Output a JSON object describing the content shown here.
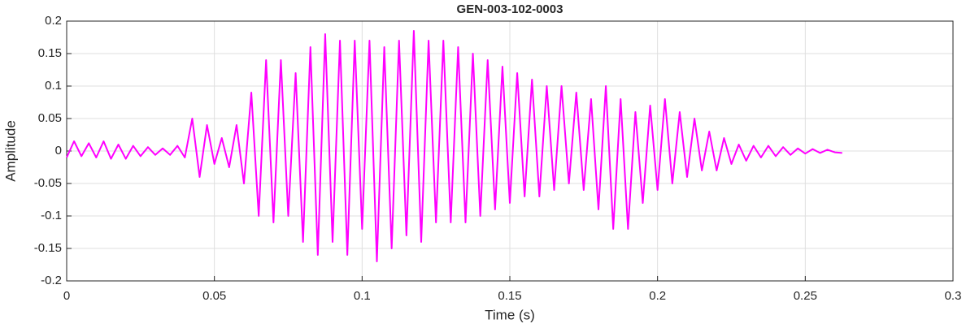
{
  "chart_data": {
    "type": "line",
    "title": "GEN-003-102-0003",
    "x_label": "Time (s)",
    "y_label": "Amplitude",
    "x": [
      0,
      0.0025,
      0.005,
      0.0075,
      0.01,
      0.0125,
      0.015,
      0.0175,
      0.02,
      0.0225,
      0.025,
      0.0275,
      0.03,
      0.0325,
      0.035,
      0.0375,
      0.04,
      0.0425,
      0.045,
      0.0475,
      0.05,
      0.0525,
      0.055,
      0.0575,
      0.06,
      0.0625,
      0.065,
      0.0675,
      0.07,
      0.0725,
      0.075,
      0.0775,
      0.08,
      0.0825,
      0.085,
      0.0875,
      0.09,
      0.0925,
      0.095,
      0.0975,
      0.1,
      0.1025,
      0.105,
      0.1075,
      0.11,
      0.1125,
      0.115,
      0.1175,
      0.12,
      0.1225,
      0.125,
      0.1275,
      0.13,
      0.1325,
      0.135,
      0.1375,
      0.14,
      0.1425,
      0.145,
      0.1475,
      0.15,
      0.1525,
      0.155,
      0.1575,
      0.16,
      0.1625,
      0.165,
      0.1675,
      0.17,
      0.1725,
      0.175,
      0.1775,
      0.18,
      0.1825,
      0.185,
      0.1875,
      0.19,
      0.1925,
      0.195,
      0.1975,
      0.2,
      0.2025,
      0.205,
      0.2075,
      0.21,
      0.2125,
      0.215,
      0.2175,
      0.22,
      0.2225,
      0.225,
      0.2275,
      0.23,
      0.2325,
      0.235,
      0.2375,
      0.24,
      0.2425,
      0.245,
      0.2475,
      0.25,
      0.2525,
      0.255,
      0.2575,
      0.26,
      0.2625
    ],
    "series": [
      {
        "color": "#ff00ff",
        "values": [
          -0.01,
          0.015,
          -0.008,
          0.012,
          -0.01,
          0.015,
          -0.012,
          0.01,
          -0.012,
          0.008,
          -0.008,
          0.006,
          -0.006,
          0.004,
          -0.006,
          0.008,
          -0.01,
          0.05,
          -0.04,
          0.04,
          -0.02,
          0.02,
          -0.025,
          0.04,
          -0.05,
          0.09,
          -0.1,
          0.14,
          -0.11,
          0.14,
          -0.1,
          0.12,
          -0.14,
          0.16,
          -0.16,
          0.18,
          -0.14,
          0.17,
          -0.16,
          0.17,
          -0.12,
          0.17,
          -0.17,
          0.16,
          -0.15,
          0.17,
          -0.13,
          0.185,
          -0.14,
          0.17,
          -0.11,
          0.17,
          -0.11,
          0.16,
          -0.11,
          0.15,
          -0.1,
          0.14,
          -0.09,
          0.13,
          -0.08,
          0.12,
          -0.07,
          0.11,
          -0.07,
          0.1,
          -0.06,
          0.1,
          -0.05,
          0.09,
          -0.06,
          0.08,
          -0.09,
          0.1,
          -0.12,
          0.08,
          -0.12,
          0.06,
          -0.08,
          0.07,
          -0.06,
          0.08,
          -0.05,
          0.06,
          -0.04,
          0.05,
          -0.03,
          0.03,
          -0.03,
          0.02,
          -0.02,
          0.01,
          -0.015,
          0.008,
          -0.01,
          0.008,
          -0.008,
          0.006,
          -0.006,
          0.004,
          -0.004,
          0.003,
          -0.003,
          0.002,
          -0.002,
          -0.003
        ]
      }
    ],
    "xlim": [
      0,
      0.3
    ],
    "xticks": [
      0,
      0.05,
      0.1,
      0.15,
      0.2,
      0.25,
      0.3
    ],
    "ylim": [
      -0.2,
      0.2
    ],
    "yticks": [
      -0.2,
      -0.15,
      -0.1,
      -0.05,
      0,
      0.05,
      0.1,
      0.15,
      0.2
    ],
    "grid": true
  }
}
